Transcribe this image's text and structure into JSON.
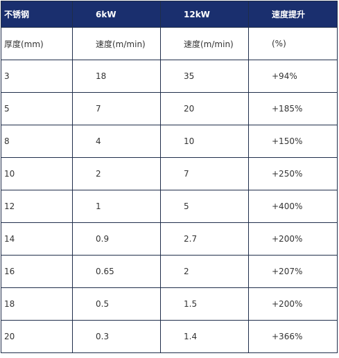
{
  "table": {
    "headers": [
      "不锈钢",
      "6kW",
      "12kW",
      "速度提升"
    ],
    "subheaders": [
      "厚度(mm)",
      "速度(m/min)",
      "速度(m/min)",
      "(%)"
    ],
    "rows": [
      [
        "3",
        "18",
        "35",
        "+94%"
      ],
      [
        "5",
        "7",
        "20",
        "+185%"
      ],
      [
        "8",
        "4",
        "10",
        "+150%"
      ],
      [
        "10",
        "2",
        "7",
        "+250%"
      ],
      [
        "12",
        "1",
        "5",
        "+400%"
      ],
      [
        "14",
        "0.9",
        "2.7",
        "+200%"
      ],
      [
        "16",
        "0.65",
        "2",
        "+207%"
      ],
      [
        "18",
        "0.5",
        "1.5",
        "+200%"
      ],
      [
        "20",
        "0.3",
        "1.4",
        "+366%"
      ]
    ]
  },
  "colors": {
    "header_bg": "#1a2f6e",
    "header_text": "#ffffff",
    "border": "#1f2d4a",
    "cell_text": "#333333"
  }
}
